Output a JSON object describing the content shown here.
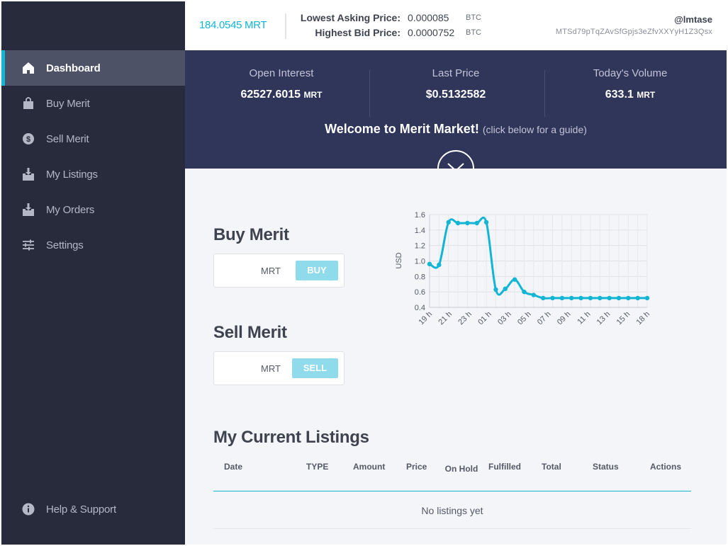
{
  "sidebar": {
    "items": [
      {
        "label": "Dashboard",
        "icon": "home-icon",
        "active": true
      },
      {
        "label": "Buy Merit",
        "icon": "shopping-bag-icon"
      },
      {
        "label": "Sell Merit",
        "icon": "dollar-coin-icon"
      },
      {
        "label": "My Listings",
        "icon": "download-tray-icon"
      },
      {
        "label": "My Orders",
        "icon": "download-tray-icon"
      },
      {
        "label": "Settings",
        "icon": "sliders-icon"
      }
    ],
    "help": {
      "label": "Help & Support",
      "icon": "info-icon"
    }
  },
  "topbar": {
    "balance": "184.0545 MRT",
    "lowest_ask_label": "Lowest Asking Price:",
    "lowest_ask_value": "0.000085",
    "lowest_ask_unit": "BTC",
    "highest_bid_label": "Highest Bid Price:",
    "highest_bid_value": "0.0000752",
    "highest_bid_unit": "BTC",
    "username": "@lmtase",
    "address": "MTSd79pTqZAvSfGpjs3eZfvXXYyH1Z3Qsx"
  },
  "stats": {
    "open_interest_label": "Open Interest",
    "open_interest_value": "62527.6015",
    "open_interest_unit": "MRT",
    "last_price_label": "Last Price",
    "last_price_value": "$0.5132582",
    "volume_label": "Today's Volume",
    "volume_value": "633.1",
    "volume_unit": "MRT",
    "welcome": "Welcome to Merit Market!",
    "welcome_hint": "(click below for a guide)"
  },
  "buy": {
    "title": "Buy Merit",
    "unit": "MRT",
    "button": "BUY"
  },
  "sell": {
    "title": "Sell Merit",
    "unit": "MRT",
    "button": "SELL"
  },
  "listings": {
    "title": "My Current Listings",
    "columns": [
      "Date",
      "TYPE",
      "Amount",
      "Price",
      "On Hold",
      "Fulfilled",
      "Total",
      "Status",
      "Actions"
    ],
    "empty_message": "No listings yet"
  },
  "chart_data": {
    "type": "line",
    "ylabel": "USD",
    "ylim": [
      0.4,
      1.6
    ],
    "yticks": [
      "0.4",
      "0.6",
      "0.8",
      "1.0",
      "1.2",
      "1.4",
      "1.6"
    ],
    "x_ticks": [
      "19 h",
      "21 h",
      "23 h",
      "01 h",
      "03 h",
      "05 h",
      "07 h",
      "09 h",
      "11 h",
      "13 h",
      "15 h",
      "18 h"
    ],
    "series": [
      {
        "color": "#12b5d3",
        "values": [
          0.96,
          0.95,
          1.5,
          1.49,
          1.49,
          1.49,
          1.5,
          0.63,
          0.64,
          0.76,
          0.6,
          0.56,
          0.52,
          0.52,
          0.52,
          0.52,
          0.52,
          0.52,
          0.52,
          0.52,
          0.52,
          0.52,
          0.52,
          0.52
        ]
      }
    ]
  }
}
